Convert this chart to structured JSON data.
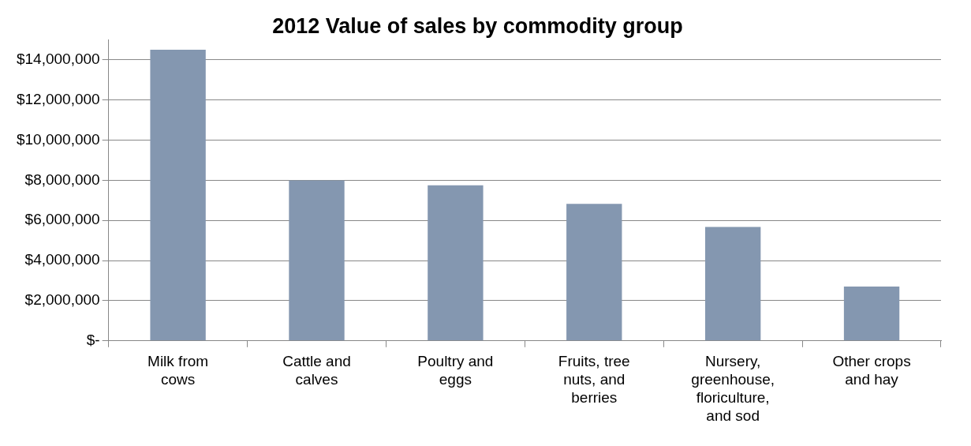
{
  "chart_data": {
    "type": "bar",
    "title": "2012 Value of sales by commodity group",
    "categories": [
      "Milk from cows",
      "Cattle and calves",
      "Poultry and eggs",
      "Fruits, tree nuts, and berries",
      "Nursery, greenhouse, floriculture, and sod",
      "Other crops and hay"
    ],
    "values": [
      14500000,
      8000000,
      7750000,
      6830000,
      5680000,
      2710000
    ],
    "color": "#8497b0",
    "ylim": [
      0,
      15000000
    ],
    "yticks": [
      {
        "value": 0,
        "label": "$-"
      },
      {
        "value": 2000000,
        "label": "$2,000,000"
      },
      {
        "value": 4000000,
        "label": "$4,000,000"
      },
      {
        "value": 6000000,
        "label": "$6,000,000"
      },
      {
        "value": 8000000,
        "label": "$8,000,000"
      },
      {
        "value": 10000000,
        "label": "$10,000,000"
      },
      {
        "value": 12000000,
        "label": "$12,000,000"
      },
      {
        "value": 14000000,
        "label": "$14,000,000"
      }
    ],
    "grid": "y",
    "legend": false
  }
}
